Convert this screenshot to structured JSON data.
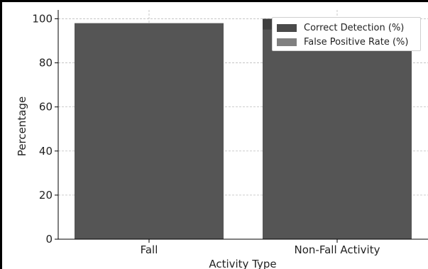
{
  "chart_data": {
    "type": "bar",
    "stacked": true,
    "categories": [
      "Fall",
      "Non-Fall Activity"
    ],
    "series": [
      {
        "name": "Correct Detection (%)",
        "values": [
          98,
          95
        ],
        "color": "#555555"
      },
      {
        "name": "False Positive Rate (%)",
        "values": [
          0,
          5
        ],
        "color": "#3f3f3f"
      }
    ],
    "title": "",
    "xlabel": "Activity Type",
    "ylabel": "Percentage",
    "ylim": [
      0,
      104
    ],
    "yticks": [
      0,
      20,
      40,
      60,
      80,
      100
    ],
    "grid": true,
    "legend_position": "top-right",
    "legend_swatch_colors": [
      "#4a4a4a",
      "#808080"
    ]
  }
}
